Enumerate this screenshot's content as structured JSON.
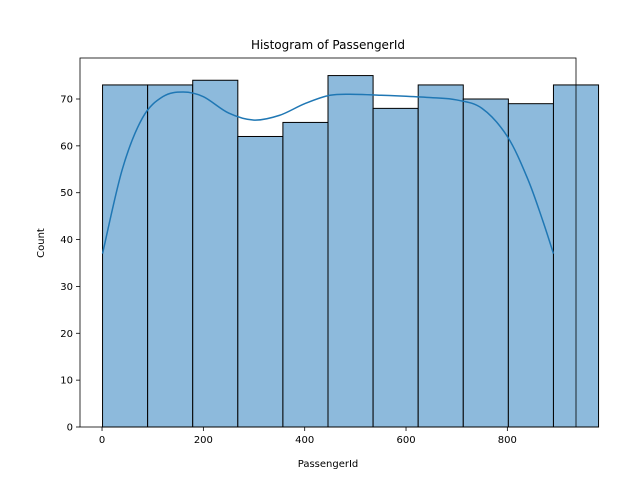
{
  "chart_data": {
    "type": "bar",
    "subtype": "histogram-with-kde",
    "title": "Histogram of PassengerId",
    "xlabel": "PassengerId",
    "ylabel": "Count",
    "xlim": [
      -43.5,
      935.5
    ],
    "ylim": [
      0,
      78.75
    ],
    "xticks": [
      0,
      200,
      400,
      600,
      800
    ],
    "yticks": [
      0,
      10,
      20,
      30,
      40,
      50,
      60,
      70
    ],
    "grid": false,
    "bins": [
      {
        "x0": 1,
        "x1": 90,
        "count": 73
      },
      {
        "x0": 90,
        "x1": 179,
        "count": 73
      },
      {
        "x0": 179,
        "x1": 268,
        "count": 74
      },
      {
        "x0": 268,
        "x1": 357,
        "count": 62
      },
      {
        "x0": 357,
        "x1": 446,
        "count": 65
      },
      {
        "x0": 446,
        "x1": 535,
        "count": 75
      },
      {
        "x0": 535,
        "x1": 624,
        "count": 68
      },
      {
        "x0": 624,
        "x1": 713,
        "count": 73
      },
      {
        "x0": 713,
        "x1": 802,
        "count": 70
      },
      {
        "x0": 802,
        "x1": 891,
        "count": 69
      },
      {
        "x0": 891,
        "x1": 891,
        "count": 73
      }
    ],
    "kde": {
      "x": [
        1,
        40,
        80,
        120,
        160,
        200,
        250,
        300,
        350,
        400,
        450,
        500,
        550,
        600,
        650,
        700,
        750,
        800,
        840,
        870,
        891
      ],
      "y": [
        37,
        55,
        66,
        70.5,
        71.5,
        70.5,
        67,
        65.5,
        66.5,
        69,
        70.8,
        71,
        70.8,
        70.6,
        70.3,
        69.8,
        68,
        62,
        53,
        44,
        37
      ]
    },
    "colors": {
      "bar_fill": "#8dbadc",
      "bar_edge": "#000000",
      "kde_line": "#1f77b4"
    }
  }
}
